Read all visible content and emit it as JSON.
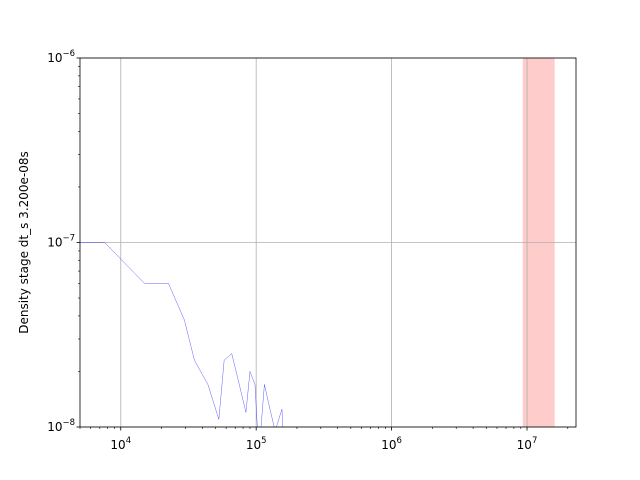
{
  "chart_data": {
    "type": "line",
    "title": "",
    "xlabel": "",
    "ylabel": "Density stage dt_s 3.200e-08s",
    "x_scale": "log",
    "y_scale": "log",
    "xlim": [
      5000,
      23000000
    ],
    "ylim": [
      1e-08,
      1e-06
    ],
    "grid": true,
    "x_ticks": [
      {
        "value": 10000,
        "base": "10",
        "exp": "4"
      },
      {
        "value": 100000,
        "base": "10",
        "exp": "5"
      },
      {
        "value": 1000000,
        "base": "10",
        "exp": "6"
      },
      {
        "value": 10000000,
        "base": "10",
        "exp": "7"
      }
    ],
    "y_ticks": [
      {
        "value": 1e-08,
        "base": "10",
        "exp": "−8"
      },
      {
        "value": 1e-07,
        "base": "10",
        "exp": "−7"
      },
      {
        "value": 1e-06,
        "base": "10",
        "exp": "−6"
      }
    ],
    "series": [
      {
        "color": "#0000ff",
        "x": [
          5000,
          7600,
          15000,
          22500,
          29500,
          35000,
          44000,
          53000,
          58000,
          66000,
          75000,
          84000,
          90000,
          98000,
          102000,
          108000,
          115000,
          122000,
          138000,
          155000,
          158000
        ],
        "y": [
          1e-07,
          1e-07,
          6e-08,
          6e-08,
          3.8e-08,
          2.3e-08,
          1.7e-08,
          1.1e-08,
          2.3e-08,
          2.5e-08,
          1.7e-08,
          1.2e-08,
          2e-08,
          1.7e-08,
          1e-08,
          9.5e-09,
          1.7e-08,
          1.4e-08,
          9.5e-09,
          1.25e-08,
          9.5e-09
        ]
      }
    ],
    "shaded_region": {
      "x_start": 9300000,
      "x_end": 16000000,
      "color": "#ff9999",
      "alpha": 0.5
    }
  }
}
